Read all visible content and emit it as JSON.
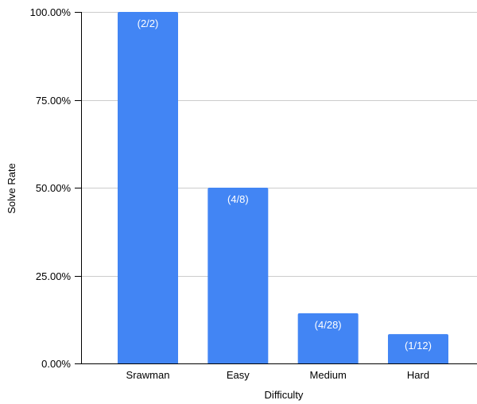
{
  "chart_data": {
    "type": "bar",
    "title": "",
    "xlabel": "Difficulty",
    "ylabel": "Solve Rate",
    "categories": [
      "Srawman",
      "Easy",
      "Medium",
      "Hard"
    ],
    "values": [
      100,
      50,
      14.29,
      8.33
    ],
    "data_labels": [
      "(2/2)",
      "(4/8)",
      "(4/28)",
      "(1/12)"
    ],
    "ylim": [
      0,
      100
    ],
    "yticks": [
      0,
      25,
      50,
      75,
      100
    ],
    "ytick_labels": [
      "0.00%",
      "25.00%",
      "50.00%",
      "75.00%",
      "100.00%"
    ],
    "grid": true,
    "legend": "none",
    "colors": {
      "bar": "#4285f4",
      "grid": "#cccccc",
      "axis": "#000000",
      "data_label": "#ffffff"
    }
  }
}
